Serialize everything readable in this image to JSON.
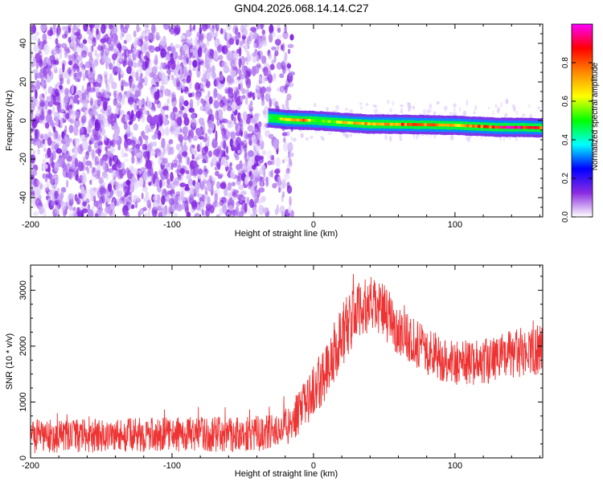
{
  "title": "GN04.2026.068.14.14.C27",
  "chart_data": [
    {
      "type": "heatmap",
      "name": "spectrogram",
      "xlabel": "Height of straight line (km)",
      "ylabel": "Frequency (Hz)",
      "xlim": [
        -200,
        162
      ],
      "ylim": [
        -50,
        50
      ],
      "xticks": [
        -200,
        -100,
        0,
        100
      ],
      "yticks": [
        -40,
        -20,
        0,
        20,
        40
      ],
      "xtick_labels": [
        "-200",
        "-100",
        "0",
        "100"
      ],
      "ytick_labels": [
        "-40",
        "-20",
        "0",
        "20",
        "40"
      ],
      "noise_region": {
        "x_from": -200,
        "x_to": -25,
        "freq_from": -50,
        "freq_to": 50,
        "amplitude": 0.15
      },
      "signal_line": {
        "x": [
          -32,
          -20,
          -10,
          0,
          10,
          20,
          40,
          60,
          80,
          100,
          115,
          130,
          150,
          162
        ],
        "freq": [
          1.5,
          0.5,
          0.2,
          0.0,
          -0.5,
          -1.0,
          -1.8,
          -2.0,
          -2.2,
          -2.5,
          -3.0,
          -3.5,
          -3.6,
          -3.8
        ],
        "amplitude": [
          0.5,
          0.7,
          0.85,
          0.55,
          0.6,
          0.7,
          0.8,
          0.85,
          0.8,
          0.7,
          0.85,
          0.95,
          0.95,
          0.9
        ]
      }
    },
    {
      "type": "colorbar",
      "name": "amplitude-colorbar",
      "label": "Normalized spectral amplitude",
      "range": [
        0,
        1
      ],
      "ticks": [
        0.0,
        0.2,
        0.4,
        0.6,
        0.8
      ],
      "tick_labels": [
        "0.0",
        "0.2",
        "0.4",
        "0.6",
        "0.8"
      ],
      "colors": [
        "#ffffff",
        "#8a2be2",
        "#0000ff",
        "#00ffff",
        "#00ff00",
        "#ffff00",
        "#ff8800",
        "#ff0000",
        "#ff00ff"
      ]
    },
    {
      "type": "line",
      "name": "snr",
      "xlabel": "Height of straight line (km)",
      "ylabel": "SNR (10 * v/v)",
      "xlim": [
        -200,
        162
      ],
      "ylim": [
        0,
        3450
      ],
      "xticks": [
        -200,
        -100,
        0,
        100
      ],
      "yticks": [
        0,
        1000,
        2000,
        3000
      ],
      "xtick_labels": [
        "-200",
        "-100",
        "0",
        "100"
      ],
      "ytick_labels": [
        "0",
        "1000",
        "2000",
        "3000"
      ],
      "color": "#ee3333",
      "envelope": {
        "x": [
          -200,
          -150,
          -100,
          -50,
          -30,
          -20,
          -10,
          0,
          10,
          20,
          30,
          40,
          50,
          60,
          80,
          100,
          120,
          140,
          162
        ],
        "mean": [
          380,
          400,
          420,
          430,
          450,
          550,
          800,
          1200,
          1600,
          2200,
          2600,
          2750,
          2600,
          2300,
          1900,
          1700,
          1700,
          1850,
          1950
        ],
        "spread": [
          300,
          300,
          310,
          320,
          320,
          350,
          400,
          450,
          550,
          600,
          500,
          500,
          500,
          450,
          420,
          420,
          420,
          450,
          450
        ]
      }
    }
  ]
}
